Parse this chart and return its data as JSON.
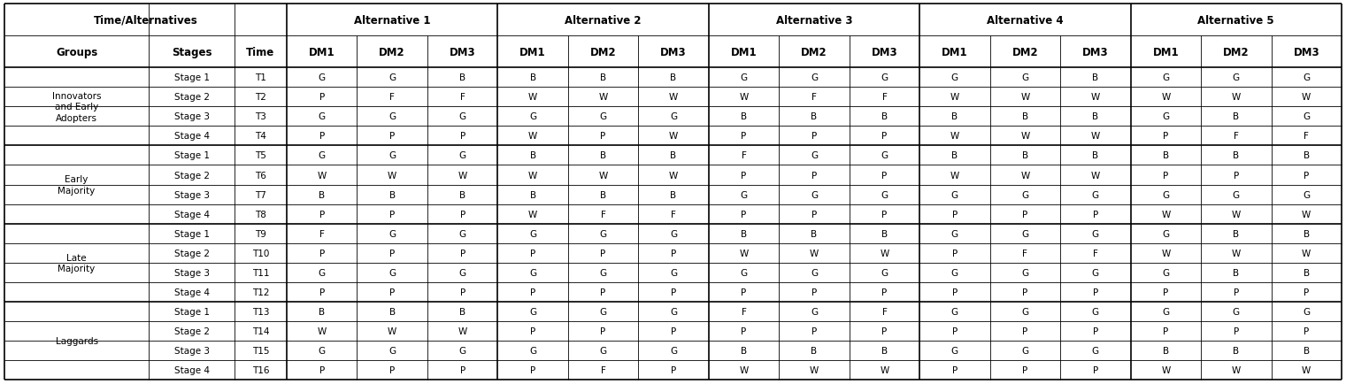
{
  "groups": [
    {
      "name": "Innovators\nand Early\nAdopters",
      "rows": 4
    },
    {
      "name": "Early\nMajority",
      "rows": 4
    },
    {
      "name": "Late\nMajority",
      "rows": 4
    },
    {
      "name": "Laggards",
      "rows": 4
    }
  ],
  "rows": [
    [
      "Stage 1",
      "T1",
      "G",
      "G",
      "B",
      "B",
      "B",
      "B",
      "G",
      "G",
      "G",
      "G",
      "G",
      "B",
      "G",
      "G",
      "G"
    ],
    [
      "Stage 2",
      "T2",
      "P",
      "F",
      "F",
      "W",
      "W",
      "W",
      "W",
      "F",
      "F",
      "W",
      "W",
      "W",
      "W",
      "W",
      "W"
    ],
    [
      "Stage 3",
      "T3",
      "G",
      "G",
      "G",
      "G",
      "G",
      "G",
      "B",
      "B",
      "B",
      "B",
      "B",
      "B",
      "G",
      "B",
      "G"
    ],
    [
      "Stage 4",
      "T4",
      "P",
      "P",
      "P",
      "W",
      "P",
      "W",
      "P",
      "P",
      "P",
      "W",
      "W",
      "W",
      "P",
      "F",
      "F"
    ],
    [
      "Stage 1",
      "T5",
      "G",
      "G",
      "G",
      "B",
      "B",
      "B",
      "F",
      "G",
      "G",
      "B",
      "B",
      "B",
      "B",
      "B",
      "B"
    ],
    [
      "Stage 2",
      "T6",
      "W",
      "W",
      "W",
      "W",
      "W",
      "W",
      "P",
      "P",
      "P",
      "W",
      "W",
      "W",
      "P",
      "P",
      "P"
    ],
    [
      "Stage 3",
      "T7",
      "B",
      "B",
      "B",
      "B",
      "B",
      "B",
      "G",
      "G",
      "G",
      "G",
      "G",
      "G",
      "G",
      "G",
      "G"
    ],
    [
      "Stage 4",
      "T8",
      "P",
      "P",
      "P",
      "W",
      "F",
      "F",
      "P",
      "P",
      "P",
      "P",
      "P",
      "P",
      "W",
      "W",
      "W"
    ],
    [
      "Stage 1",
      "T9",
      "F",
      "G",
      "G",
      "G",
      "G",
      "G",
      "B",
      "B",
      "B",
      "G",
      "G",
      "G",
      "G",
      "B",
      "B"
    ],
    [
      "Stage 2",
      "T10",
      "P",
      "P",
      "P",
      "P",
      "P",
      "P",
      "W",
      "W",
      "W",
      "P",
      "F",
      "F",
      "W",
      "W",
      "W"
    ],
    [
      "Stage 3",
      "T11",
      "G",
      "G",
      "G",
      "G",
      "G",
      "G",
      "G",
      "G",
      "G",
      "G",
      "G",
      "G",
      "G",
      "B",
      "B"
    ],
    [
      "Stage 4",
      "T12",
      "P",
      "P",
      "P",
      "P",
      "P",
      "P",
      "P",
      "P",
      "P",
      "P",
      "P",
      "P",
      "P",
      "P",
      "P"
    ],
    [
      "Stage 1",
      "T13",
      "B",
      "B",
      "B",
      "G",
      "G",
      "G",
      "F",
      "G",
      "F",
      "G",
      "G",
      "G",
      "G",
      "G",
      "G"
    ],
    [
      "Stage 2",
      "T14",
      "W",
      "W",
      "W",
      "P",
      "P",
      "P",
      "P",
      "P",
      "P",
      "P",
      "P",
      "P",
      "P",
      "P",
      "P"
    ],
    [
      "Stage 3",
      "T15",
      "G",
      "G",
      "G",
      "G",
      "G",
      "G",
      "B",
      "B",
      "B",
      "G",
      "G",
      "G",
      "B",
      "B",
      "B"
    ],
    [
      "Stage 4",
      "T16",
      "P",
      "P",
      "P",
      "P",
      "F",
      "P",
      "W",
      "W",
      "W",
      "P",
      "P",
      "P",
      "W",
      "W",
      "W"
    ]
  ],
  "bg_color": "#ffffff",
  "line_color": "#000000",
  "font_size": 7.5,
  "header_font_size": 8.5
}
